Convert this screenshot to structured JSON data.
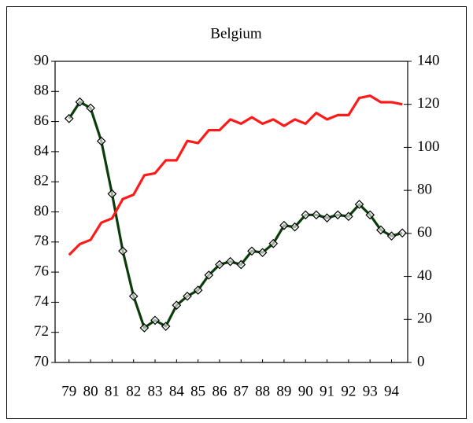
{
  "chart_data": {
    "type": "line",
    "title": "Belgium",
    "x": [
      79,
      79.5,
      80,
      80.5,
      81,
      81.5,
      82,
      82.5,
      83,
      83.5,
      84,
      84.5,
      85,
      85.5,
      86,
      86.5,
      87,
      87.5,
      88,
      88.5,
      89,
      89.5,
      90,
      90.5,
      91,
      91.5,
      92,
      92.5,
      93,
      93.5,
      94,
      94.5
    ],
    "xlim": [
      78.35,
      94.75
    ],
    "xticks": [
      79,
      80,
      81,
      82,
      83,
      84,
      85,
      86,
      87,
      88,
      89,
      90,
      91,
      92,
      93,
      94
    ],
    "ylim": [
      70,
      90
    ],
    "yticks": [
      70,
      72,
      74,
      76,
      78,
      80,
      82,
      84,
      86,
      88,
      90
    ],
    "y2lim": [
      0,
      140
    ],
    "y2ticks": [
      0,
      20,
      40,
      60,
      80,
      100,
      120,
      140
    ],
    "series": [
      {
        "color": "#0b3d0b",
        "marker": "diamond",
        "values": [
          86.2,
          87.3,
          86.9,
          84.7,
          81.2,
          77.4,
          74.4,
          72.3,
          72.8,
          72.4,
          73.8,
          74.4,
          74.8,
          75.8,
          76.5,
          76.7,
          76.5,
          77.4,
          77.3,
          77.9,
          79.1,
          79.0,
          79.8,
          79.8,
          79.6,
          79.8,
          79.7,
          80.5,
          79.8,
          78.8,
          78.4,
          78.6
        ]
      },
      {
        "color": "#ff1a1a",
        "axis": "y2",
        "values": [
          50,
          55,
          57,
          65,
          67,
          76,
          78,
          87,
          88,
          94,
          94,
          103,
          102,
          108,
          108,
          113,
          111,
          114,
          111,
          113,
          110,
          113,
          111,
          116,
          113,
          115,
          115,
          123,
          124,
          121,
          121,
          120
        ]
      }
    ]
  }
}
